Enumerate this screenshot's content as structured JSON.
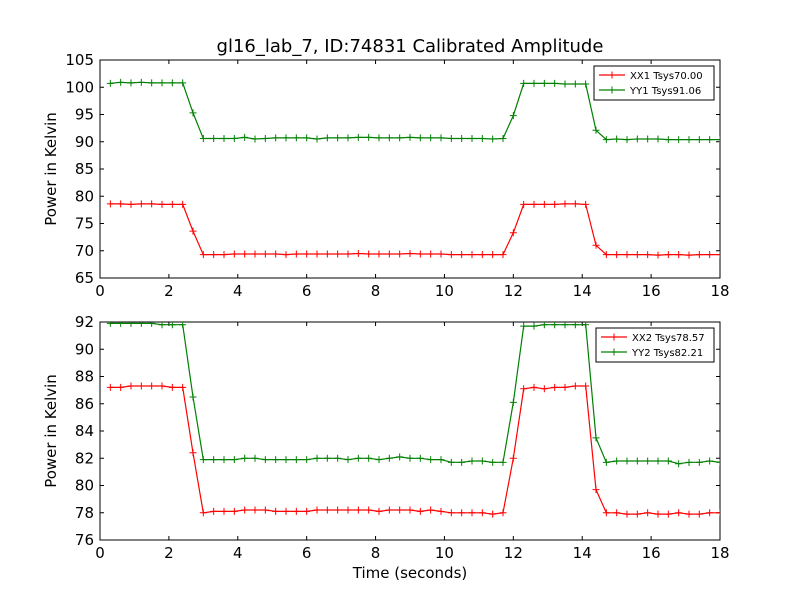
{
  "figure": {
    "title": "gl16_lab_7, ID:74831 Calibrated Amplitude"
  },
  "chart_data": [
    {
      "type": "line",
      "title": "gl16_lab_7, ID:74831 Calibrated Amplitude",
      "xlabel": "",
      "ylabel": "Power in Kelvin",
      "xlim": [
        0,
        18
      ],
      "ylim": [
        65,
        105
      ],
      "xticks": [
        0,
        2,
        4,
        6,
        8,
        10,
        12,
        14,
        16,
        18
      ],
      "yticks": [
        65,
        70,
        75,
        80,
        85,
        90,
        95,
        100,
        105
      ],
      "legend": "top-right",
      "grid": false,
      "x": [
        0.3,
        0.6,
        0.9,
        1.2,
        1.5,
        1.8,
        2.1,
        2.4,
        2.7,
        3.0,
        3.3,
        3.6,
        3.9,
        4.2,
        4.5,
        4.8,
        5.1,
        5.4,
        5.7,
        6.0,
        6.3,
        6.6,
        6.9,
        7.2,
        7.5,
        7.8,
        8.1,
        8.4,
        8.7,
        9.0,
        9.3,
        9.6,
        9.9,
        10.2,
        10.5,
        10.8,
        11.1,
        11.4,
        11.7,
        12.0,
        12.3,
        12.6,
        12.9,
        13.2,
        13.5,
        13.8,
        14.1,
        14.4,
        14.7,
        15.0,
        15.3,
        15.6,
        15.9,
        16.2,
        16.5,
        16.8,
        17.1,
        17.4,
        17.7,
        18.0
      ],
      "series": [
        {
          "name": "XX1 Tsys70.00",
          "color": "#ff0000",
          "values": [
            78.6,
            78.6,
            78.5,
            78.6,
            78.6,
            78.5,
            78.5,
            78.5,
            73.6,
            69.3,
            69.3,
            69.3,
            69.4,
            69.4,
            69.4,
            69.4,
            69.4,
            69.3,
            69.4,
            69.4,
            69.4,
            69.4,
            69.4,
            69.4,
            69.5,
            69.4,
            69.4,
            69.4,
            69.4,
            69.5,
            69.4,
            69.4,
            69.4,
            69.3,
            69.3,
            69.3,
            69.3,
            69.3,
            69.3,
            73.3,
            78.5,
            78.5,
            78.5,
            78.5,
            78.6,
            78.6,
            78.5,
            71.0,
            69.3,
            69.3,
            69.3,
            69.3,
            69.3,
            69.2,
            69.3,
            69.3,
            69.2,
            69.3,
            69.3,
            69.3
          ]
        },
        {
          "name": "YY1 Tsys91.06",
          "color": "#008000",
          "values": [
            100.7,
            100.9,
            100.8,
            100.9,
            100.8,
            100.8,
            100.8,
            100.8,
            95.3,
            90.6,
            90.6,
            90.6,
            90.6,
            90.8,
            90.5,
            90.6,
            90.7,
            90.7,
            90.7,
            90.7,
            90.5,
            90.7,
            90.7,
            90.7,
            90.8,
            90.8,
            90.7,
            90.7,
            90.7,
            90.8,
            90.7,
            90.7,
            90.7,
            90.6,
            90.6,
            90.6,
            90.6,
            90.5,
            90.6,
            94.8,
            100.7,
            100.7,
            100.7,
            100.7,
            100.6,
            100.6,
            100.6,
            92.1,
            90.4,
            90.5,
            90.4,
            90.5,
            90.5,
            90.5,
            90.4,
            90.4,
            90.4,
            90.4,
            90.4,
            90.4
          ]
        }
      ]
    },
    {
      "type": "line",
      "title": "",
      "xlabel": "Time (seconds)",
      "ylabel": "Power in Kelvin",
      "xlim": [
        0,
        18
      ],
      "ylim": [
        76,
        92
      ],
      "xticks": [
        0,
        2,
        4,
        6,
        8,
        10,
        12,
        14,
        16,
        18
      ],
      "yticks": [
        76,
        78,
        80,
        82,
        84,
        86,
        88,
        90,
        92
      ],
      "legend": "top-right",
      "grid": false,
      "x": [
        0.3,
        0.6,
        0.9,
        1.2,
        1.5,
        1.8,
        2.1,
        2.4,
        2.7,
        3.0,
        3.3,
        3.6,
        3.9,
        4.2,
        4.5,
        4.8,
        5.1,
        5.4,
        5.7,
        6.0,
        6.3,
        6.6,
        6.9,
        7.2,
        7.5,
        7.8,
        8.1,
        8.4,
        8.7,
        9.0,
        9.3,
        9.6,
        9.9,
        10.2,
        10.5,
        10.8,
        11.1,
        11.4,
        11.7,
        12.0,
        12.3,
        12.6,
        12.9,
        13.2,
        13.5,
        13.8,
        14.1,
        14.4,
        14.7,
        15.0,
        15.3,
        15.6,
        15.9,
        16.2,
        16.5,
        16.8,
        17.1,
        17.4,
        17.7,
        18.0
      ],
      "series": [
        {
          "name": "XX2 Tsys78.57",
          "color": "#ff0000",
          "values": [
            87.2,
            87.2,
            87.3,
            87.3,
            87.3,
            87.3,
            87.2,
            87.2,
            82.4,
            78.0,
            78.1,
            78.1,
            78.1,
            78.2,
            78.2,
            78.2,
            78.1,
            78.1,
            78.1,
            78.1,
            78.2,
            78.2,
            78.2,
            78.2,
            78.2,
            78.2,
            78.1,
            78.2,
            78.2,
            78.2,
            78.1,
            78.2,
            78.1,
            78.0,
            78.0,
            78.0,
            78.0,
            77.9,
            78.0,
            82.0,
            87.1,
            87.2,
            87.1,
            87.2,
            87.2,
            87.3,
            87.3,
            79.7,
            78.0,
            78.0,
            77.9,
            77.9,
            78.0,
            77.9,
            77.9,
            78.0,
            77.9,
            77.9,
            78.0,
            78.0
          ]
        },
        {
          "name": "YY2 Tsys82.21",
          "color": "#008000",
          "values": [
            91.9,
            91.9,
            91.9,
            91.9,
            91.9,
            91.8,
            91.8,
            91.8,
            86.5,
            81.9,
            81.9,
            81.9,
            81.9,
            82.0,
            82.0,
            81.9,
            81.9,
            81.9,
            81.9,
            81.9,
            82.0,
            82.0,
            82.0,
            81.9,
            82.0,
            82.0,
            81.9,
            82.0,
            82.1,
            82.0,
            82.0,
            81.9,
            81.9,
            81.7,
            81.7,
            81.8,
            81.8,
            81.7,
            81.7,
            86.1,
            91.7,
            91.7,
            91.8,
            91.8,
            91.8,
            91.8,
            91.8,
            83.5,
            81.7,
            81.8,
            81.8,
            81.8,
            81.8,
            81.8,
            81.8,
            81.6,
            81.7,
            81.7,
            81.8,
            81.7
          ]
        }
      ]
    }
  ]
}
